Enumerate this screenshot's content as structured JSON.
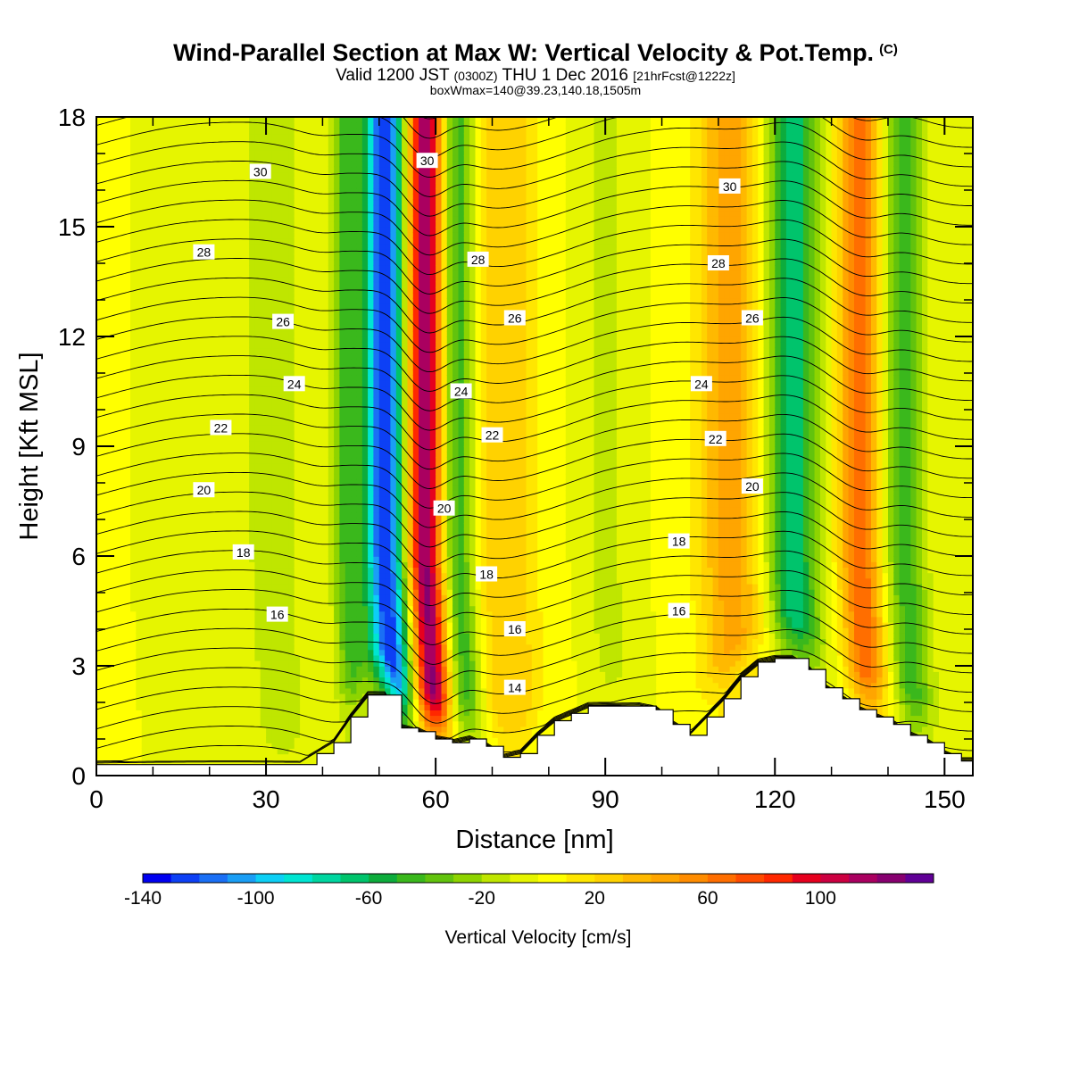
{
  "header": {
    "title": "Wind-Parallel Section at Max W: Vertical Velocity & Pot.Temp.",
    "copyright": "(C)",
    "valid_prefix": "Valid 1200 JST",
    "valid_z": "(0300Z)",
    "valid_date": "THU 1 Dec 2016",
    "forecast": "[21hrFcst@1222z]",
    "box_info": "boxWmax=140@39.23,140.18,1505m"
  },
  "chart_data": {
    "type": "heatmap",
    "title": "Wind-Parallel Section at Max W: Vertical Velocity & Pot.Temp.",
    "xlabel": "Distance [nm]",
    "ylabel": "Height [Kft MSL]",
    "xlim": [
      0,
      155
    ],
    "ylim": [
      0,
      18
    ],
    "x_ticks": [
      0,
      30,
      60,
      90,
      120,
      150
    ],
    "x_tick_labels": [
      "0",
      "30",
      "60",
      "90",
      "120",
      "150"
    ],
    "y_ticks": [
      0,
      3,
      6,
      9,
      12,
      15,
      18
    ],
    "y_tick_labels": [
      "0",
      "3",
      "6",
      "9",
      "12",
      "15",
      "18"
    ],
    "colorbar": {
      "label": "Vertical Velocity [cm/s]",
      "min": -140,
      "max": 140,
      "step": 10,
      "tick_values": [
        -140,
        -100,
        -60,
        -20,
        20,
        60,
        100
      ],
      "tick_labels": [
        "-140",
        "-100",
        "-60",
        "-20",
        "20",
        "60",
        "100"
      ],
      "colors": [
        "#0000f0",
        "#0d40f5",
        "#1a6ff5",
        "#1a9ef5",
        "#0dcff5",
        "#00e5d2",
        "#00d6a0",
        "#00c46c",
        "#0dac3c",
        "#3ab81c",
        "#62c30d",
        "#8ed400",
        "#bfe600",
        "#e6f500",
        "#ffff00",
        "#ffe600",
        "#ffd200",
        "#ffb900",
        "#ffa500",
        "#ff8c00",
        "#ff6e00",
        "#ff4b00",
        "#ff2800",
        "#e6001e",
        "#cc0041",
        "#aa0060",
        "#870070",
        "#600096"
      ]
    },
    "vertical_velocity_bands": [
      {
        "x": 31,
        "w": 3.0,
        "amp": -20
      },
      {
        "x": 44,
        "w": 1.8,
        "amp": -40
      },
      {
        "x": 51,
        "w": 2.6,
        "amp": -130
      },
      {
        "x": 58,
        "w": 2.2,
        "amp": 125
      },
      {
        "x": 64,
        "w": 2.0,
        "amp": -50
      },
      {
        "x": 72,
        "w": 4.0,
        "amp": 30
      },
      {
        "x": 90,
        "w": 2.5,
        "amp": -15
      },
      {
        "x": 112,
        "w": 4.0,
        "amp": 45
      },
      {
        "x": 123,
        "w": 3.0,
        "amp": -70
      },
      {
        "x": 135,
        "w": 2.5,
        "amp": 70
      },
      {
        "x": 143,
        "w": 2.5,
        "amp": -45
      }
    ],
    "theta_contour_labels": [
      {
        "text": "30",
        "x": 29,
        "y": 16.5
      },
      {
        "text": "30",
        "x": 58.5,
        "y": 16.8
      },
      {
        "text": "30",
        "x": 112,
        "y": 16.1
      },
      {
        "text": "28",
        "x": 19,
        "y": 14.3
      },
      {
        "text": "28",
        "x": 67.5,
        "y": 14.1
      },
      {
        "text": "28",
        "x": 110,
        "y": 14.0
      },
      {
        "text": "26",
        "x": 33,
        "y": 12.4
      },
      {
        "text": "26",
        "x": 74,
        "y": 12.5
      },
      {
        "text": "26",
        "x": 116,
        "y": 12.5
      },
      {
        "text": "24",
        "x": 35,
        "y": 10.7
      },
      {
        "text": "24",
        "x": 64.5,
        "y": 10.5
      },
      {
        "text": "24",
        "x": 107,
        "y": 10.7
      },
      {
        "text": "22",
        "x": 22,
        "y": 9.5
      },
      {
        "text": "22",
        "x": 70,
        "y": 9.3
      },
      {
        "text": "22",
        "x": 109.5,
        "y": 9.2
      },
      {
        "text": "20",
        "x": 19,
        "y": 7.8
      },
      {
        "text": "20",
        "x": 61.5,
        "y": 7.3
      },
      {
        "text": "20",
        "x": 116,
        "y": 7.9
      },
      {
        "text": "18",
        "x": 26,
        "y": 6.1
      },
      {
        "text": "18",
        "x": 69,
        "y": 5.5
      },
      {
        "text": "18",
        "x": 103,
        "y": 6.4
      },
      {
        "text": "16",
        "x": 32,
        "y": 4.4
      },
      {
        "text": "16",
        "x": 74,
        "y": 4.0
      },
      {
        "text": "16",
        "x": 103,
        "y": 4.5
      },
      {
        "text": "14",
        "x": 74,
        "y": 2.4
      }
    ],
    "terrain_x": [
      0,
      3,
      6,
      9,
      12,
      15,
      18,
      21,
      24,
      27,
      30,
      33,
      36,
      39,
      42,
      45,
      48,
      51,
      54,
      57,
      60,
      63,
      66,
      69,
      72,
      75,
      78,
      81,
      84,
      87,
      90,
      93,
      96,
      99,
      102,
      105,
      108,
      111,
      114,
      117,
      120,
      123,
      126,
      129,
      132,
      135,
      138,
      141,
      144,
      147,
      150,
      153,
      155
    ],
    "terrain_kft": [
      0.3,
      0.3,
      0.3,
      0.3,
      0.3,
      0.3,
      0.3,
      0.3,
      0.3,
      0.3,
      0.3,
      0.3,
      0.3,
      0.6,
      0.9,
      1.6,
      2.2,
      2.2,
      1.3,
      1.2,
      1.0,
      0.9,
      1.0,
      0.8,
      0.5,
      0.6,
      1.1,
      1.5,
      1.7,
      1.9,
      1.9,
      1.9,
      1.9,
      1.8,
      1.4,
      1.1,
      1.6,
      2.1,
      2.7,
      3.1,
      3.2,
      3.2,
      2.9,
      2.4,
      2.1,
      1.8,
      1.6,
      1.4,
      1.1,
      0.9,
      0.6,
      0.4,
      0.4
    ]
  }
}
